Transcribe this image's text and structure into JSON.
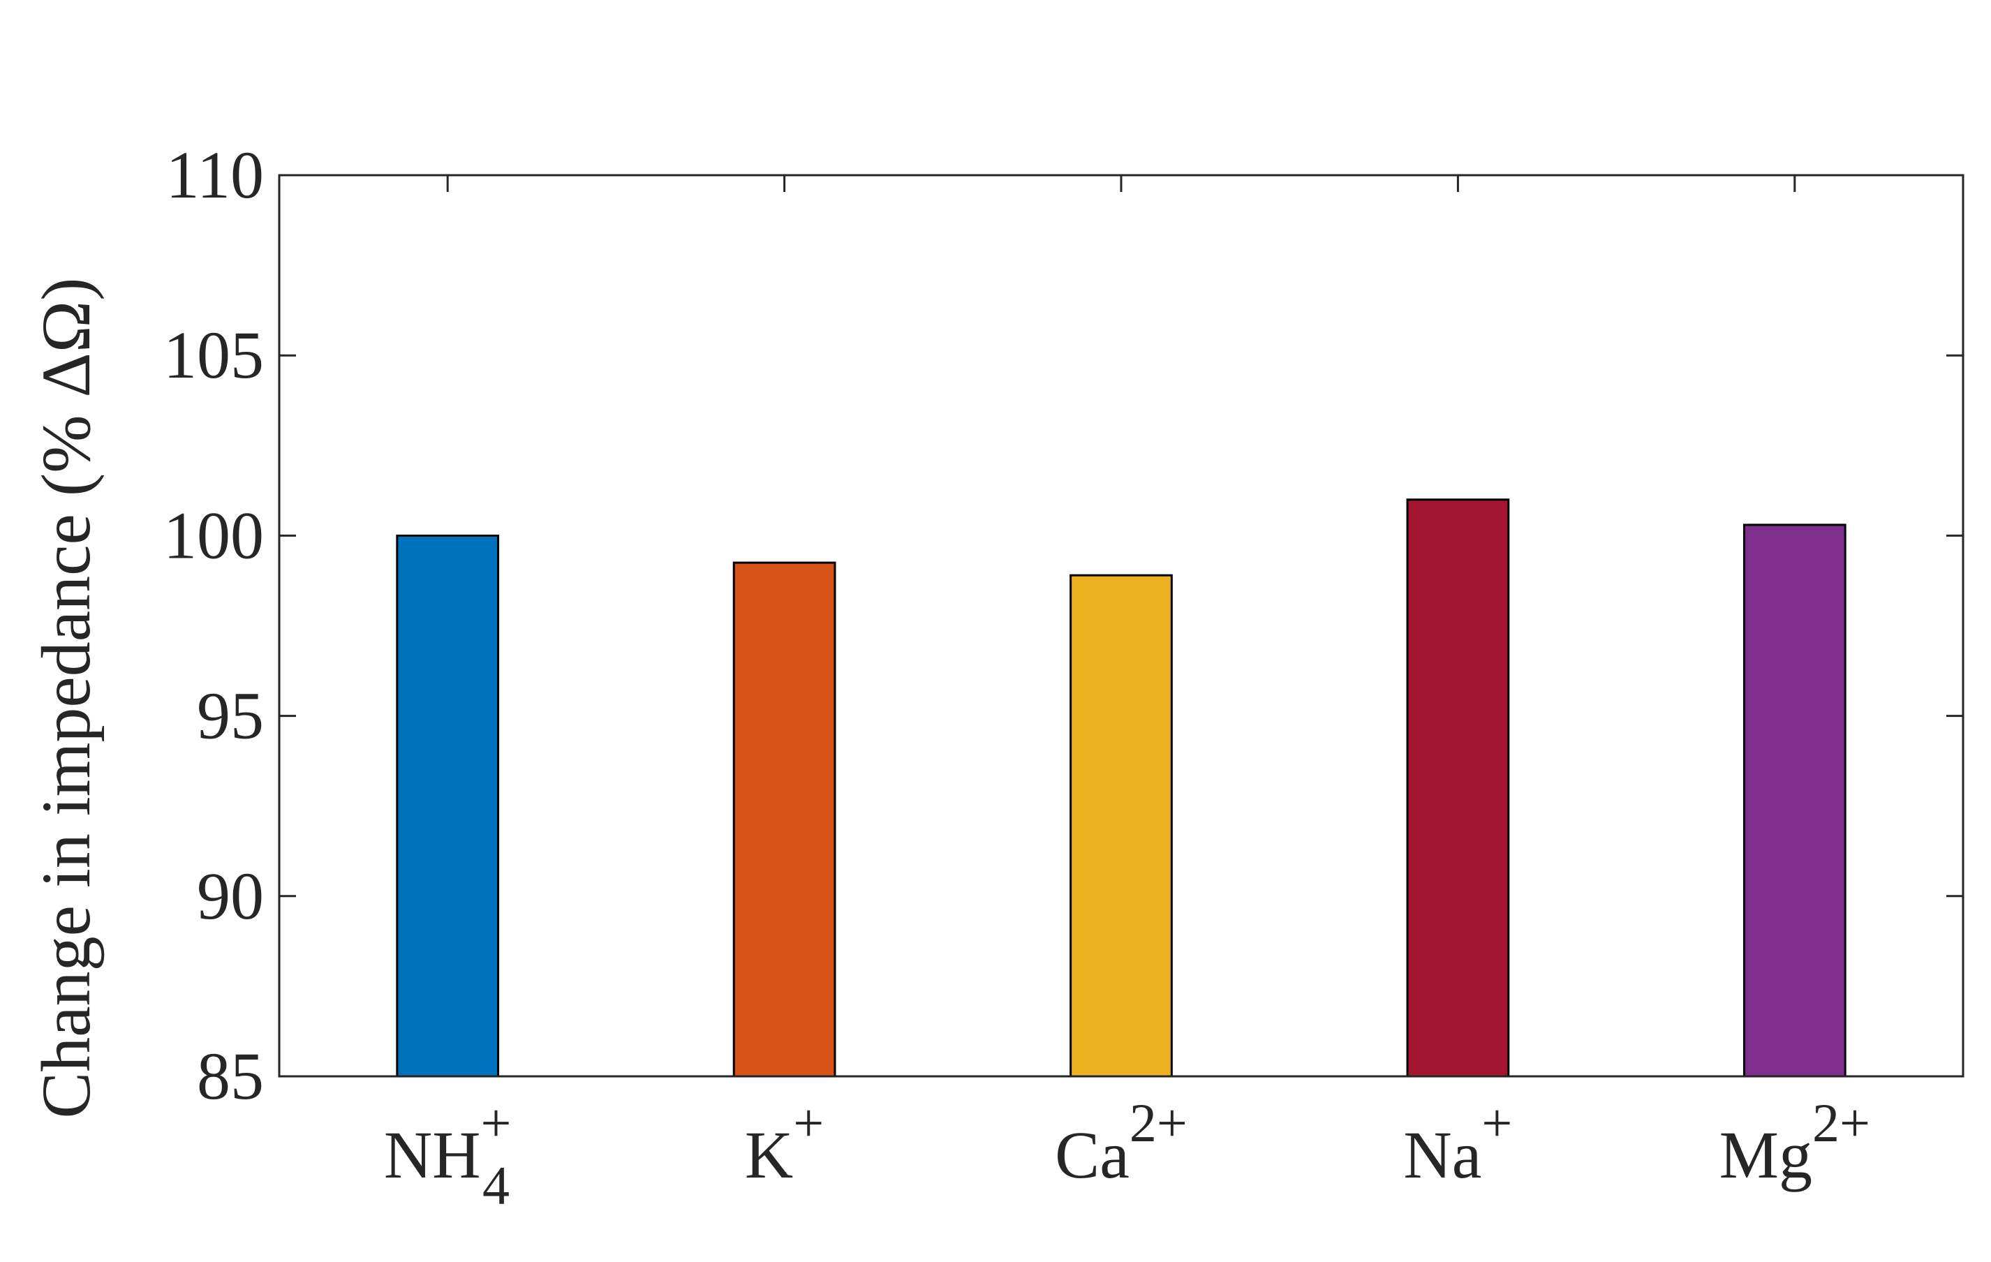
{
  "chart_data": {
    "type": "bar",
    "categories": [
      {
        "base": "NH",
        "sup": "+",
        "sub": "4"
      },
      {
        "base": "K",
        "sup": "+",
        "sub": ""
      },
      {
        "base": "Ca",
        "sup": "2+",
        "sub": ""
      },
      {
        "base": "Na",
        "sup": "+",
        "sub": ""
      },
      {
        "base": "Mg",
        "sup": "2+",
        "sub": ""
      }
    ],
    "values": [
      100.0,
      99.25,
      98.9,
      101.0,
      100.3
    ],
    "colors": [
      "#0072BD",
      "#D95319",
      "#EDB120",
      "#A2142F",
      "#7E2F8E"
    ],
    "ylabel": "Change in impedance (% ΔΩ)",
    "xlabel": "",
    "title": "",
    "ylim": [
      85,
      110
    ],
    "yticks": [
      85,
      90,
      95,
      100,
      105,
      110
    ],
    "grid": false
  }
}
